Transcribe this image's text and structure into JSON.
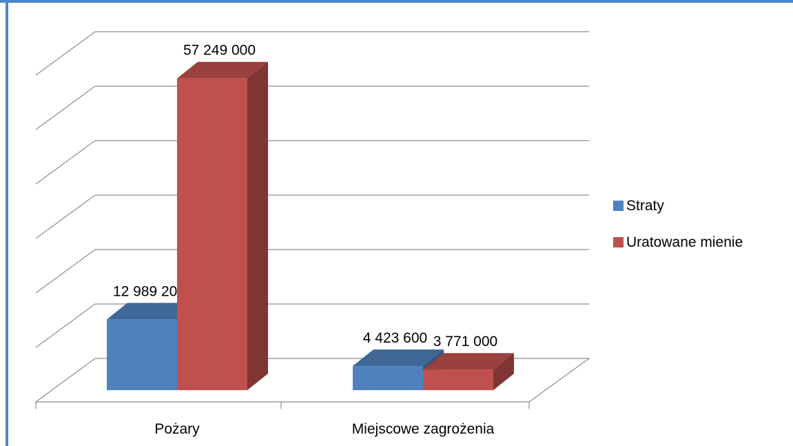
{
  "colors": {
    "frame": "#4a86c8",
    "gridline": "#8c8c8c"
  },
  "legend": {
    "placement": "right",
    "items": [
      {
        "label": "Straty",
        "color": "#4f81bd"
      },
      {
        "label": "Uratowane mienie",
        "color": "#c0504d"
      }
    ]
  },
  "chart_data": {
    "type": "bar",
    "style": "3d-clustered-column",
    "categories": [
      "Pożary",
      "Miejscowe zagrożenia"
    ],
    "series": [
      {
        "name": "Straty",
        "values": [
          12989200,
          4423600
        ],
        "labels": [
          "12 989 200",
          "4 423 600"
        ],
        "color": "#4f81bd"
      },
      {
        "name": "Uratowane mienie",
        "values": [
          57249000,
          3771000
        ],
        "labels": [
          "57 249 000",
          "3 771 000"
        ],
        "color": "#c0504d"
      }
    ],
    "ylim": [
      0,
      60000000
    ],
    "grid": true,
    "legend": "right"
  }
}
